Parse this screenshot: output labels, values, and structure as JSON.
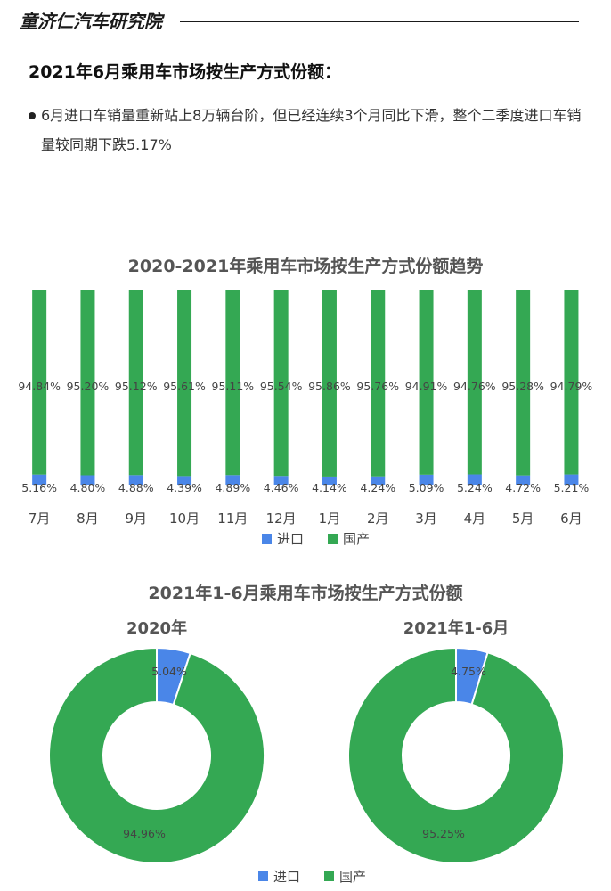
{
  "header": {
    "brand": "童济仁汽车研究院",
    "section_title": "2021年6月乘用车市场按生产方式份额：",
    "bullet": "6月进口车销量重新站上8万辆台阶，但已经连续3个月同比下滑，整个二季度进口车销量较同期下跌5.17%"
  },
  "colors": {
    "import": "#4a86e8",
    "domestic": "#34a853"
  },
  "chart_data": [
    {
      "type": "bar",
      "stacked": true,
      "title": "2020-2021年乘用车市场按生产方式份额趋势",
      "categories": [
        "7月",
        "8月",
        "9月",
        "10月",
        "11月",
        "12月",
        "1月",
        "2月",
        "3月",
        "4月",
        "5月",
        "6月"
      ],
      "series": [
        {
          "name": "进口",
          "values": [
            5.16,
            4.8,
            4.88,
            4.39,
            4.89,
            4.46,
            4.14,
            4.24,
            5.09,
            5.24,
            4.72,
            5.21
          ],
          "labels": [
            "5.16%",
            "4.80%",
            "4.88%",
            "4.39%",
            "4.89%",
            "4.46%",
            "4.14%",
            "4.24%",
            "5.09%",
            "5.24%",
            "4.72%",
            "5.21%"
          ]
        },
        {
          "name": "国产",
          "values": [
            94.84,
            95.2,
            95.12,
            95.61,
            95.11,
            95.54,
            95.86,
            95.76,
            94.91,
            94.76,
            95.28,
            94.79
          ],
          "labels": [
            "94.84%",
            "95.20%",
            "95.12%",
            "95.61%",
            "95.11%",
            "95.54%",
            "95.86%",
            "95.76%",
            "94.91%",
            "94.76%",
            "95.28%",
            "94.79%"
          ]
        }
      ],
      "ylim": [
        0,
        100
      ],
      "legend": [
        "进口",
        "国产"
      ],
      "legend_position": "bottom",
      "grid": false
    },
    {
      "type": "pie",
      "donut": true,
      "title": "2021年1-6月乘用车市场按生产方式份额",
      "legend": [
        "进口",
        "国产"
      ],
      "legend_position": "bottom",
      "charts": [
        {
          "label": "2020年",
          "slices": [
            {
              "name": "进口",
              "value": 5.04,
              "label": "5.04%"
            },
            {
              "name": "国产",
              "value": 94.96,
              "label": "94.96%"
            }
          ]
        },
        {
          "label": "2021年1-6月",
          "slices": [
            {
              "name": "进口",
              "value": 4.75,
              "label": "4.75%"
            },
            {
              "name": "国产",
              "value": 95.25,
              "label": "95.25%"
            }
          ]
        }
      ]
    }
  ]
}
